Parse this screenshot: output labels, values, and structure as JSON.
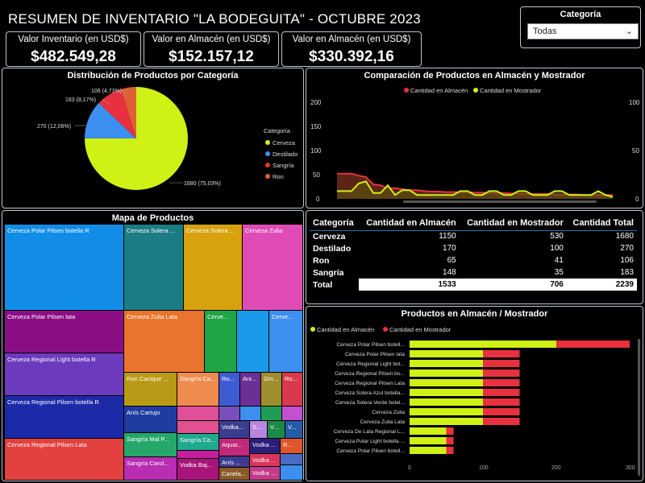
{
  "header": {
    "title": "RESUMEN DE INVENTARIO \"LA BODEGUITA\" - OCTUBRE 2023"
  },
  "filter": {
    "label": "Categoría",
    "selected": "Todas"
  },
  "kpis": [
    {
      "label": "Valor Inventario (en USD$)",
      "value": "$482.549,28"
    },
    {
      "label": "Valor en Almacén (en USD$)",
      "value": "$152.157,12"
    },
    {
      "label": "Valor en Almacén (en USD$)",
      "value": "$330.392,16"
    }
  ],
  "pie": {
    "title": "Distribución de Productos por Categoría",
    "legend_title": "Categoría",
    "slices": [
      {
        "name": "Cerveza",
        "label": "1680 (75,03%)",
        "value": 1680,
        "color": "#cff116"
      },
      {
        "name": "Destilado",
        "label": "270 (12,06%)",
        "value": 270,
        "color": "#3d8fef"
      },
      {
        "name": "Sangría",
        "label": "183 (8,17%)",
        "value": 183,
        "color": "#e8303f"
      },
      {
        "name": "Ron",
        "label": "106 (4,73%)",
        "value": 106,
        "color": "#de6133"
      }
    ]
  },
  "line": {
    "title": "Comparación de Productos en Almacén y Mostrador",
    "series_names": [
      "Cantidad en Almacén",
      "Cantidad en Mostrador"
    ],
    "colors": [
      "#e8303f",
      "#cff116"
    ],
    "y_ticks": [
      "200",
      "150",
      "100",
      "50",
      "0"
    ],
    "y2_ticks": [
      "100",
      "50",
      "0"
    ]
  },
  "chart_data": [
    {
      "type": "pie",
      "title": "Distribución de Productos por Categoría",
      "categories": [
        "Cerveza",
        "Destilado",
        "Sangría",
        "Ron"
      ],
      "values": [
        1680,
        270,
        183,
        106
      ]
    },
    {
      "type": "line",
      "title": "Comparación de Productos en Almacén y Mostrador",
      "ylim": [
        0,
        200
      ],
      "y2lim": [
        0,
        100
      ],
      "series": [
        {
          "name": "Cantidad en Almacén",
          "values": [
            52,
            52,
            52,
            48,
            45,
            30,
            28,
            22,
            22,
            20,
            18,
            18,
            16,
            15,
            15,
            14,
            14,
            14,
            14,
            13,
            13,
            12,
            12,
            12,
            11,
            11,
            10,
            10,
            10,
            10,
            9,
            9,
            9,
            9,
            8,
            8,
            8,
            8,
            8
          ]
        },
        {
          "name": "Cantidad en Mostrador",
          "values": [
            8,
            8,
            8,
            16,
            18,
            6,
            6,
            14,
            4,
            9,
            9,
            4,
            4,
            4,
            4,
            4,
            4,
            8,
            8,
            4,
            4,
            8,
            8,
            4,
            4,
            8,
            8,
            4,
            4,
            4,
            8,
            8,
            4,
            4,
            4,
            4,
            8,
            4,
            2
          ]
        }
      ]
    },
    {
      "type": "bar",
      "title": "Productos en Almacén / Mostrador",
      "categories": [
        "Cerveza Polar Pilsen botell...",
        "Cerveza Polar Pilsen lata",
        "Cerveza Regional Light bot...",
        "Cerveza Regional Pilsen bo...",
        "Cerveza Regional Pilsen Lata",
        "Cerveza Solera Azul botella...",
        "Cerveza Solera Verde botel...",
        "Cerveza Zulia",
        "Cerveza Zulia Lata",
        "Cerveza De Lata Regional L...",
        "Cerveza Polar Light botella ...",
        "Cerveza Polar Pilsen botell..."
      ],
      "xlim": [
        0,
        300
      ],
      "series": [
        {
          "name": "Cantidad en Almacén",
          "values": [
            200,
            100,
            100,
            100,
            100,
            100,
            100,
            100,
            100,
            50,
            50,
            50
          ]
        },
        {
          "name": "Cantidad en Mostrador",
          "values": [
            100,
            50,
            50,
            50,
            50,
            50,
            50,
            50,
            50,
            10,
            10,
            10
          ]
        }
      ]
    }
  ],
  "treemap": {
    "title": "Mapa de Productos",
    "tiles": [
      {
        "label": "Cerveza Polar Pilsen botella R",
        "color": "#118de8"
      },
      {
        "label": "Cerveza Polar Pilsen lata",
        "color": "#8b0e85"
      },
      {
        "label": "Cerveza Regional Light botella R",
        "color": "#6c3bbd"
      },
      {
        "label": "Cerveza Regional Pilsen botella R",
        "color": "#1d2aa7"
      },
      {
        "label": "Cerveza Regional Pilsen Lata",
        "color": "#e2413f"
      },
      {
        "label": "Cerveza Solera ...",
        "color": "#1b7c86"
      },
      {
        "label": "Cerveza Solera ...",
        "color": "#d7a20d"
      },
      {
        "label": "Cerveza Zulia",
        "color": "#e04cb6"
      },
      {
        "label": "Cerveza Zulia Lata",
        "color": "#e9742d"
      },
      {
        "label": "Cerve...",
        "color": "#1fa544"
      },
      {
        "label": "",
        "color": "#1a9bea"
      },
      {
        "label": "Cerve...",
        "color": "#3d8fef"
      },
      {
        "label": "Ron Cacique ...",
        "color": "#b99a16"
      },
      {
        "label": "Sangría Ca...",
        "color": "#f08b4f"
      },
      {
        "label": "Ro...",
        "color": "#3f5bd4"
      },
      {
        "label": "Ani...",
        "color": "#6b2f95"
      },
      {
        "label": "Gin...",
        "color": "#9e8d2c"
      },
      {
        "label": "Ro...",
        "color": "#d83a4b"
      },
      {
        "label": "",
        "color": "#e14e9a"
      },
      {
        "label": "",
        "color": "#7a4fbf"
      },
      {
        "label": "",
        "color": "#3d8fef"
      },
      {
        "label": "",
        "color": "#219c56"
      },
      {
        "label": "",
        "color": "#c44fcf"
      },
      {
        "label": "Anís Cartujo",
        "color": "#1e3da1"
      },
      {
        "label": "",
        "color": "#e25090"
      },
      {
        "label": "Sangría Ca...",
        "color": "#1fa98e"
      },
      {
        "label": "Vodka...",
        "color": "#3a3d8f"
      },
      {
        "label": "S...",
        "color": "#b985df"
      },
      {
        "label": "V...",
        "color": "#1c8a46"
      },
      {
        "label": "V...",
        "color": "#255ba8"
      },
      {
        "label": "Sangría Mal P...",
        "color": "#26a86b"
      },
      {
        "label": "",
        "color": "#c61f9d"
      },
      {
        "label": "Aquar...",
        "color": "#c22879"
      },
      {
        "label": "Vodka ...",
        "color": "#2b1e7a"
      },
      {
        "label": "R...",
        "color": "#e0552a"
      },
      {
        "label": "Vodka Baj...",
        "color": "#a8157a"
      },
      {
        "label": "Anís ...",
        "color": "#3d3a8f"
      },
      {
        "label": "Vodka ...",
        "color": "#d7355a"
      },
      {
        "label": "",
        "color": "#4a6ac4"
      },
      {
        "label": "Sangría Carol...",
        "color": "#b82db1"
      },
      {
        "label": "Vodka Baj...",
        "color": "#6c2088"
      },
      {
        "label": "Canela...",
        "color": "#8a5a2a"
      },
      {
        "label": "Vodka S...",
        "color": "#c23a8a"
      },
      {
        "label": "",
        "color": "#3d8fef"
      }
    ]
  },
  "table": {
    "headers": [
      "Categoría",
      "Cantidad en Almacén",
      "Cantidad en Mostrador",
      "Cantidad Total"
    ],
    "rows": [
      [
        "Cerveza",
        "1150",
        "530",
        "1680"
      ],
      [
        "Destilado",
        "170",
        "100",
        "270"
      ],
      [
        "Ron",
        "65",
        "41",
        "106"
      ],
      [
        "Sangría",
        "148",
        "35",
        "183"
      ]
    ],
    "total": [
      "Total",
      "1533",
      "706",
      "2239"
    ]
  },
  "hbar": {
    "title": "Productos en Almacén / Mostrador",
    "series_names": [
      "Cantidad en Almacén",
      "Cantidad en Mostrador"
    ],
    "colors": [
      "#cff116",
      "#e8303f"
    ],
    "x_ticks": [
      "0",
      "100",
      "200",
      "300"
    ]
  }
}
